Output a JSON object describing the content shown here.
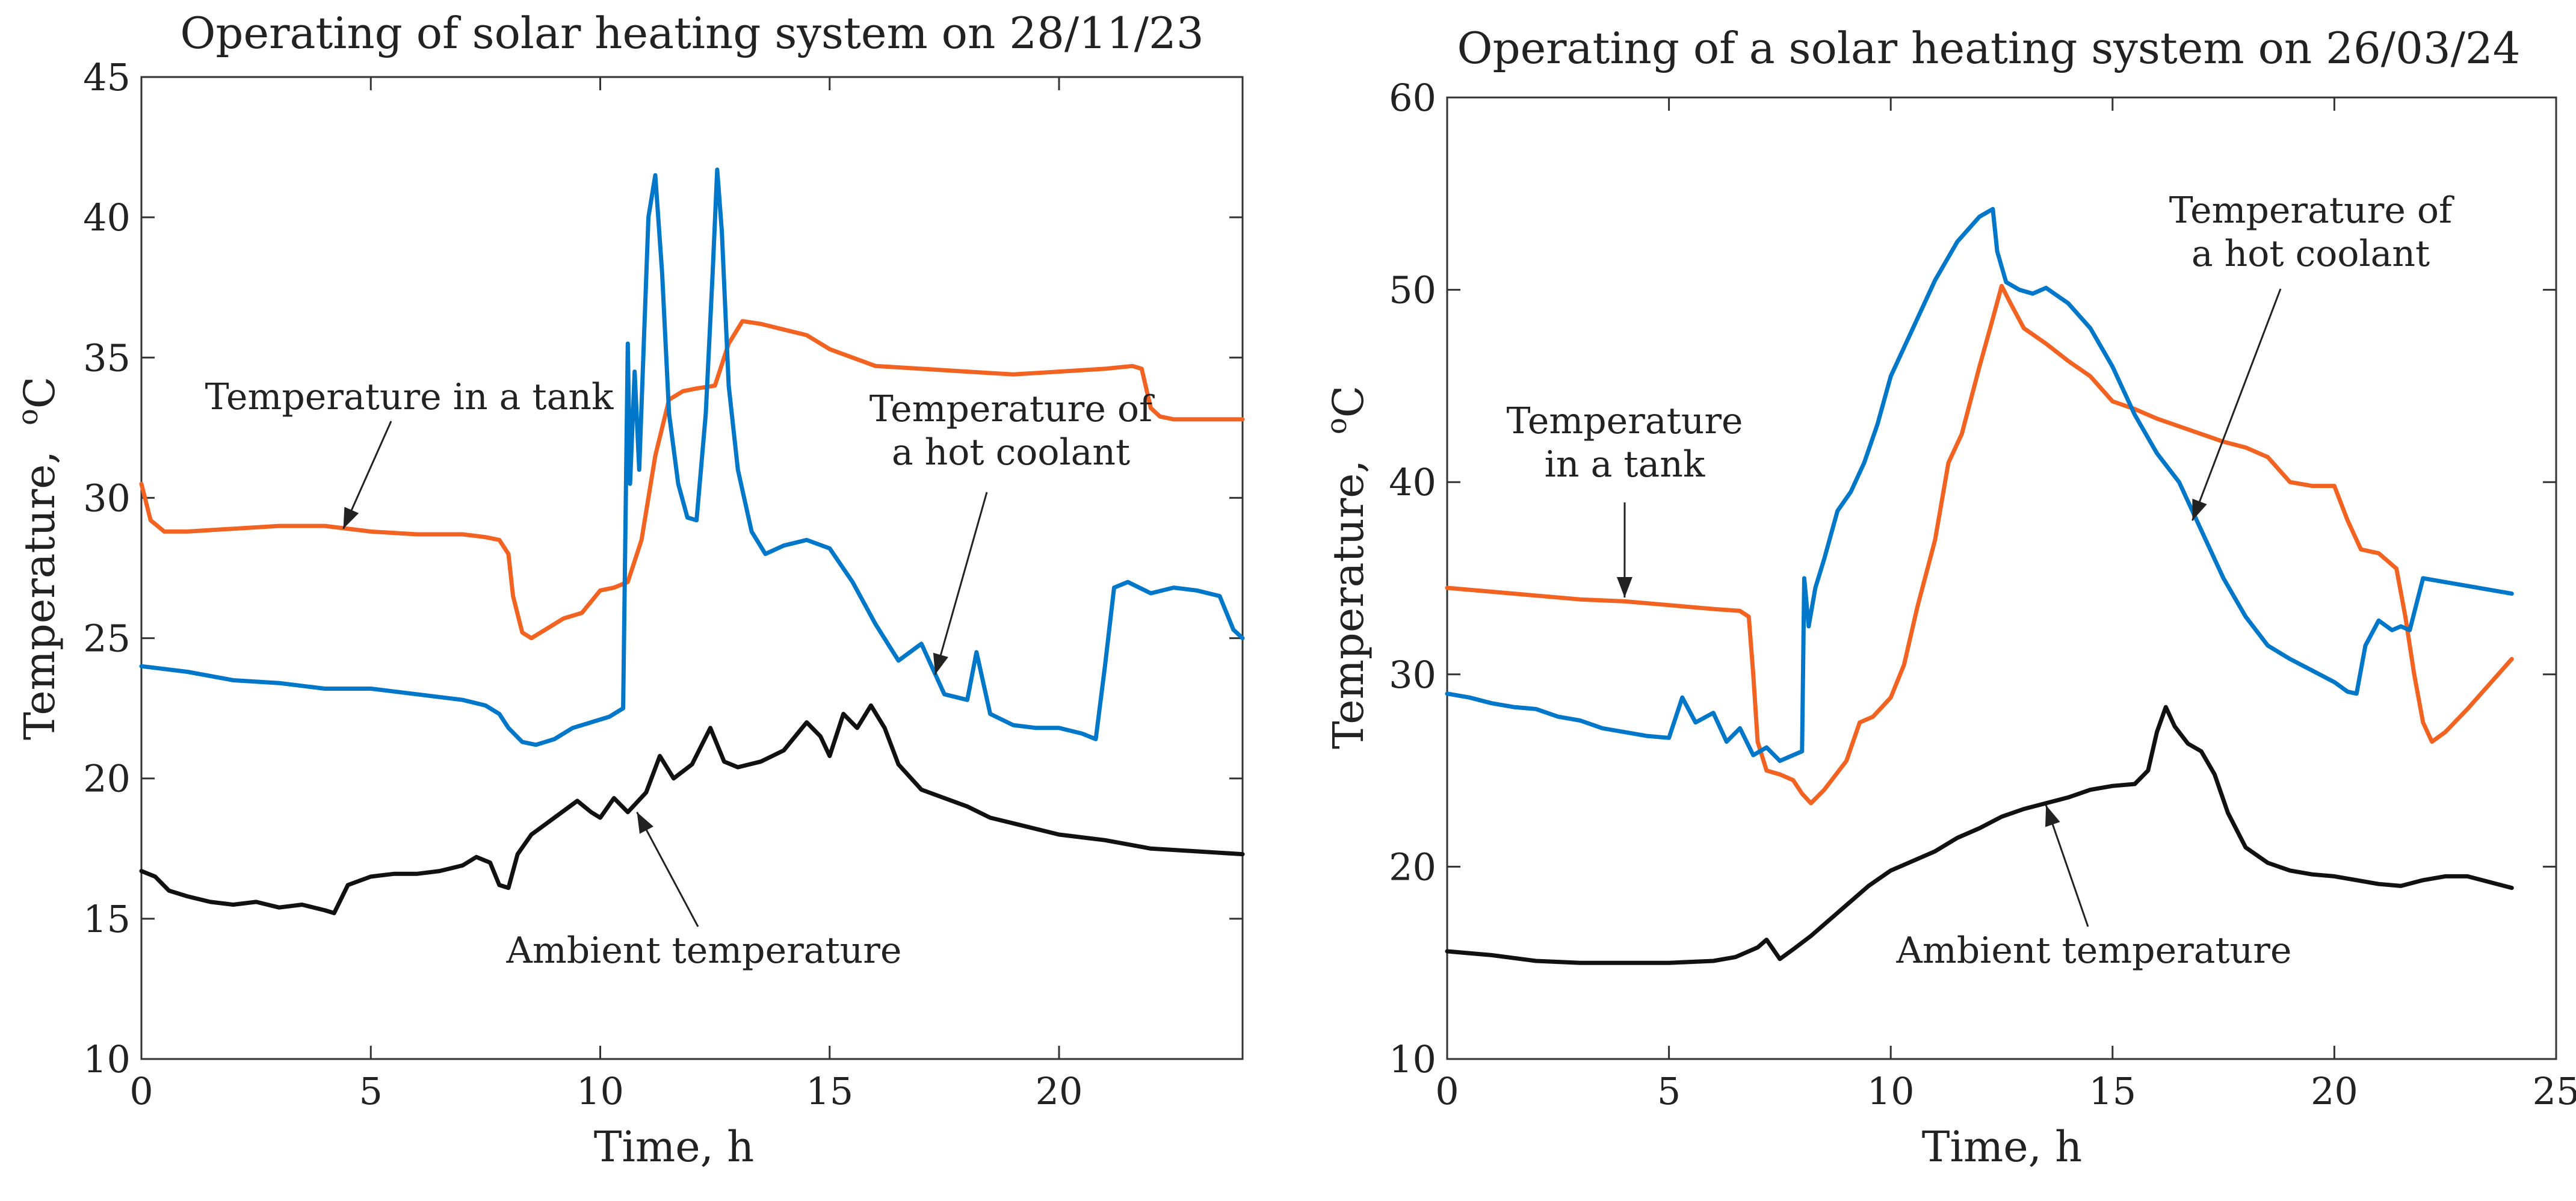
{
  "chart_data": [
    {
      "type": "line",
      "title": "Operating of solar heating system on 28/11/23",
      "xlabel": "Time, h",
      "ylabel": "Temperature,",
      "ylabel_unit": "°C",
      "xlim": [
        0,
        24
      ],
      "ylim": [
        10,
        45
      ],
      "x_ticks": [
        0,
        5,
        10,
        15,
        20
      ],
      "y_ticks": [
        10,
        15,
        20,
        25,
        30,
        35,
        40,
        45
      ],
      "grid": false,
      "series": [
        {
          "name": "Temperature in a tank",
          "color": "#f26322",
          "x": [
            0,
            0.2,
            0.5,
            1,
            2,
            3,
            4,
            5,
            6,
            7,
            7.5,
            7.8,
            8.0,
            8.1,
            8.3,
            8.5,
            8.8,
            9.2,
            9.6,
            10,
            10.3,
            10.6,
            10.9,
            11.2,
            11.5,
            11.8,
            12.1,
            12.5,
            12.8,
            13.1,
            13.5,
            14,
            14.5,
            15,
            15.5,
            16,
            17,
            18,
            19,
            20,
            21,
            21.6,
            21.8,
            22,
            22.2,
            22.5,
            23,
            23.5,
            24
          ],
          "y": [
            30.5,
            29.2,
            28.8,
            28.8,
            28.9,
            29.0,
            29.0,
            28.8,
            28.7,
            28.7,
            28.6,
            28.5,
            28.0,
            26.5,
            25.2,
            25.0,
            25.3,
            25.7,
            25.9,
            26.7,
            26.8,
            27.0,
            28.5,
            31.5,
            33.5,
            33.8,
            33.9,
            34.0,
            35.5,
            36.3,
            36.2,
            36.0,
            35.8,
            35.3,
            35.0,
            34.7,
            34.6,
            34.5,
            34.4,
            34.5,
            34.6,
            34.7,
            34.6,
            33.2,
            32.9,
            32.8,
            32.8,
            32.8,
            32.8
          ]
        },
        {
          "name": "Temperature of a hot coolant",
          "color": "#0077c8",
          "x": [
            0,
            1,
            2,
            3,
            4,
            5,
            6,
            7,
            7.5,
            7.8,
            8.0,
            8.3,
            8.6,
            9.0,
            9.4,
            9.8,
            10.2,
            10.5,
            10.6,
            10.65,
            10.75,
            10.85,
            10.95,
            11.05,
            11.2,
            11.35,
            11.5,
            11.7,
            11.9,
            12.1,
            12.3,
            12.45,
            12.55,
            12.65,
            12.8,
            13.0,
            13.3,
            13.6,
            14,
            14.5,
            15,
            15.5,
            16,
            16.5,
            17,
            17.5,
            18,
            18.2,
            18.5,
            19,
            19.5,
            20,
            20.5,
            20.8,
            21.0,
            21.2,
            21.5,
            22,
            22.5,
            23,
            23.5,
            23.8,
            24
          ],
          "y": [
            24.0,
            23.8,
            23.5,
            23.4,
            23.2,
            23.2,
            23.0,
            22.8,
            22.6,
            22.3,
            21.8,
            21.3,
            21.2,
            21.4,
            21.8,
            22.0,
            22.2,
            22.5,
            35.5,
            30.5,
            34.5,
            31.0,
            35.5,
            40.0,
            41.5,
            38.0,
            33.0,
            30.5,
            29.3,
            29.2,
            33.0,
            38.0,
            41.7,
            39.5,
            34.0,
            31.0,
            28.8,
            28.0,
            28.3,
            28.5,
            28.2,
            27.0,
            25.5,
            24.2,
            24.8,
            23.0,
            22.8,
            24.5,
            22.3,
            21.9,
            21.8,
            21.8,
            21.6,
            21.4,
            24.0,
            26.8,
            27.0,
            26.6,
            26.8,
            26.7,
            26.5,
            25.3,
            25.0
          ]
        },
        {
          "name": "Ambient temperature",
          "color": "#111111",
          "x": [
            0,
            0.3,
            0.6,
            1,
            1.5,
            2,
            2.5,
            3,
            3.5,
            4,
            4.2,
            4.5,
            5,
            5.5,
            6,
            6.5,
            7,
            7.3,
            7.6,
            7.8,
            8.0,
            8.2,
            8.5,
            9,
            9.5,
            9.8,
            10,
            10.3,
            10.6,
            11,
            11.3,
            11.6,
            12,
            12.4,
            12.7,
            13,
            13.5,
            14,
            14.5,
            14.8,
            15,
            15.3,
            15.6,
            15.9,
            16.2,
            16.5,
            17,
            17.5,
            18,
            18.5,
            19,
            20,
            21,
            22,
            23,
            24
          ],
          "y": [
            16.7,
            16.5,
            16.0,
            15.8,
            15.6,
            15.5,
            15.6,
            15.4,
            15.5,
            15.3,
            15.2,
            16.2,
            16.5,
            16.6,
            16.6,
            16.7,
            16.9,
            17.2,
            17.0,
            16.2,
            16.1,
            17.3,
            18.0,
            18.6,
            19.2,
            18.8,
            18.6,
            19.3,
            18.8,
            19.5,
            20.8,
            20.0,
            20.5,
            21.8,
            20.6,
            20.4,
            20.6,
            21.0,
            22.0,
            21.5,
            20.8,
            22.3,
            21.8,
            22.6,
            21.8,
            20.5,
            19.6,
            19.3,
            19.0,
            18.6,
            18.4,
            18.0,
            17.8,
            17.5,
            17.4,
            17.3
          ]
        }
      ],
      "annotations": [
        {
          "lines": [
            "Temperature in a tank"
          ],
          "points_to": [
            4.4,
            28.9
          ]
        },
        {
          "lines": [
            "Temperature of",
            "a hot coolant"
          ],
          "points_to": [
            17.3,
            23.7
          ]
        },
        {
          "lines": [
            "Ambient temperature"
          ],
          "points_to": [
            10.8,
            18.8
          ]
        }
      ]
    },
    {
      "type": "line",
      "title": "Operating of a solar heating system on 26/03/24",
      "xlabel": "Time, h",
      "ylabel": "Temperature,",
      "ylabel_unit": "°C",
      "xlim": [
        0,
        25
      ],
      "ylim": [
        10,
        60
      ],
      "x_ticks": [
        0,
        5,
        10,
        15,
        20,
        25
      ],
      "y_ticks": [
        10,
        20,
        30,
        40,
        50,
        60
      ],
      "grid": false,
      "series": [
        {
          "name": "Temperature in a tank",
          "color": "#f26322",
          "x": [
            0,
            1,
            2,
            3,
            4,
            5,
            6,
            6.6,
            6.8,
            6.9,
            7.0,
            7.2,
            7.5,
            7.8,
            8.0,
            8.2,
            8.5,
            9,
            9.3,
            9.6,
            10,
            10.3,
            10.6,
            11,
            11.3,
            11.6,
            12,
            12.3,
            12.5,
            12.7,
            13,
            13.5,
            14,
            14.5,
            15,
            15.5,
            16,
            16.5,
            17,
            17.5,
            18,
            18.5,
            19,
            19.5,
            20,
            20.3,
            20.6,
            21,
            21.4,
            21.6,
            21.8,
            22.0,
            22.2,
            22.5,
            23,
            23.5,
            24
          ],
          "y": [
            34.5,
            34.3,
            34.1,
            33.9,
            33.8,
            33.6,
            33.4,
            33.3,
            33.0,
            30.0,
            26.5,
            25.0,
            24.8,
            24.5,
            23.8,
            23.3,
            24.0,
            25.5,
            27.5,
            27.8,
            28.8,
            30.5,
            33.5,
            37.0,
            41.0,
            42.5,
            46.0,
            48.5,
            50.2,
            49.3,
            48.0,
            47.2,
            46.3,
            45.5,
            44.2,
            43.8,
            43.3,
            42.9,
            42.5,
            42.1,
            41.8,
            41.3,
            40.0,
            39.8,
            39.8,
            38.0,
            36.5,
            36.3,
            35.5,
            33.0,
            30.0,
            27.5,
            26.5,
            27.0,
            28.2,
            29.5,
            30.8
          ]
        },
        {
          "name": "Temperature of a hot coolant",
          "color": "#0077c8",
          "x": [
            0,
            0.5,
            1,
            1.5,
            2,
            2.5,
            3,
            3.5,
            4,
            4.5,
            5,
            5.3,
            5.6,
            6,
            6.3,
            6.6,
            6.9,
            7.2,
            7.5,
            7.8,
            8.0,
            8.05,
            8.15,
            8.3,
            8.5,
            8.8,
            9.1,
            9.4,
            9.7,
            10,
            10.5,
            11,
            11.5,
            12,
            12.3,
            12.4,
            12.6,
            12.9,
            13.2,
            13.5,
            14,
            14.5,
            15,
            15.5,
            16,
            16.5,
            17,
            17.5,
            18,
            18.5,
            19,
            19.5,
            20,
            20.3,
            20.5,
            20.7,
            21,
            21.3,
            21.5,
            21.7,
            22,
            22.5,
            23,
            23.5,
            24
          ],
          "y": [
            29.0,
            28.8,
            28.5,
            28.3,
            28.2,
            27.8,
            27.6,
            27.2,
            27.0,
            26.8,
            26.7,
            28.8,
            27.5,
            28.0,
            26.5,
            27.2,
            25.8,
            26.2,
            25.5,
            25.8,
            26.0,
            35.0,
            32.5,
            34.5,
            36.0,
            38.5,
            39.5,
            41.0,
            43.0,
            45.5,
            48.0,
            50.5,
            52.5,
            53.8,
            54.2,
            52.0,
            50.4,
            50.0,
            49.8,
            50.1,
            49.3,
            48.0,
            46.0,
            43.5,
            41.5,
            40.0,
            37.5,
            35.0,
            33.0,
            31.5,
            30.8,
            30.2,
            29.6,
            29.1,
            29.0,
            31.5,
            32.8,
            32.3,
            32.5,
            32.3,
            35.0,
            34.8,
            34.6,
            34.4,
            34.2
          ]
        },
        {
          "name": "Ambient temperature",
          "color": "#111111",
          "x": [
            0,
            1,
            2,
            3,
            4,
            5,
            6,
            6.5,
            7.0,
            7.2,
            7.5,
            7.8,
            8.2,
            8.6,
            9,
            9.5,
            10,
            10.5,
            11,
            11.5,
            12,
            12.5,
            13,
            13.5,
            14,
            14.5,
            15,
            15.5,
            15.8,
            16.0,
            16.2,
            16.4,
            16.7,
            17,
            17.3,
            17.6,
            18,
            18.5,
            19,
            19.5,
            20,
            20.5,
            21,
            21.5,
            22,
            22.5,
            23,
            23.5,
            24
          ],
          "y": [
            15.6,
            15.4,
            15.1,
            15.0,
            15.0,
            15.0,
            15.1,
            15.3,
            15.8,
            16.2,
            15.2,
            15.7,
            16.4,
            17.2,
            18.0,
            19.0,
            19.8,
            20.3,
            20.8,
            21.5,
            22.0,
            22.6,
            23.0,
            23.3,
            23.6,
            24.0,
            24.2,
            24.3,
            25.0,
            27.0,
            28.3,
            27.3,
            26.4,
            26.0,
            24.8,
            22.8,
            21.0,
            20.2,
            19.8,
            19.6,
            19.5,
            19.3,
            19.1,
            19.0,
            19.3,
            19.5,
            19.5,
            19.2,
            18.9
          ]
        }
      ],
      "annotations": [
        {
          "lines": [
            "Temperature",
            "in a tank"
          ],
          "points_to": [
            4.0,
            34.0
          ]
        },
        {
          "lines": [
            "Temperature of",
            "a hot coolant"
          ],
          "points_to": [
            16.8,
            38.0
          ]
        },
        {
          "lines": [
            "Ambient temperature"
          ],
          "points_to": [
            13.5,
            23.2
          ]
        }
      ]
    }
  ]
}
